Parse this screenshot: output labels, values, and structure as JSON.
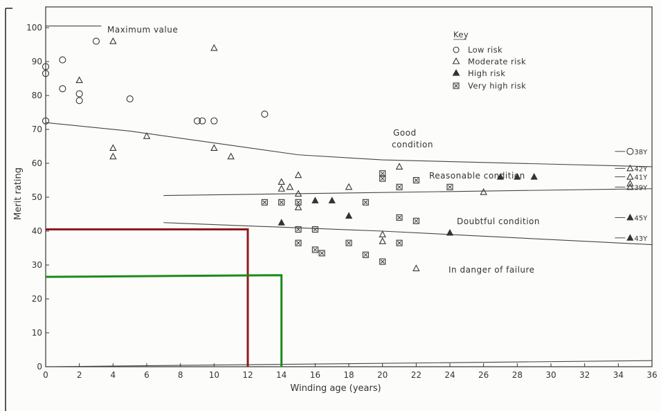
{
  "chart_data": {
    "type": "scatter",
    "xlabel": "Winding age (years)",
    "ylabel": "Merit rating",
    "xlim": [
      0,
      36
    ],
    "ylim": [
      0,
      105
    ],
    "x_ticks": [
      "0",
      "2",
      "4",
      "6",
      "8",
      "10",
      "12",
      "14",
      "16",
      "18",
      "20",
      "22",
      "24",
      "26",
      "28",
      "30",
      "32",
      "34",
      "36"
    ],
    "y_ticks": [
      "0",
      "10",
      "20",
      "30",
      "40",
      "50",
      "60",
      "70",
      "80",
      "90",
      "100"
    ],
    "grid": false,
    "legend": {
      "title": "Key",
      "position": "top-right",
      "entries": [
        {
          "symbol": "circle",
          "label": "Low risk"
        },
        {
          "symbol": "triangle-open",
          "label": "Moderate risk"
        },
        {
          "symbol": "triangle-filled",
          "label": "High risk"
        },
        {
          "symbol": "square-x",
          "label": "Very high risk"
        }
      ]
    },
    "annotations": {
      "max_value": "Maximum value",
      "good": [
        "Good",
        "condition"
      ],
      "reasonable": "Reasonable condition",
      "doubtful": "Doubtful condition",
      "danger": "In danger of failure"
    },
    "boundary_lines": [
      {
        "name": "max",
        "points": [
          [
            0,
            100.5
          ],
          [
            3.3,
            100.5
          ]
        ]
      },
      {
        "name": "good-reasonable",
        "points": [
          [
            0,
            72
          ],
          [
            5,
            69.5
          ],
          [
            10,
            66
          ],
          [
            15,
            62.5
          ],
          [
            20,
            61
          ],
          [
            36,
            59
          ]
        ]
      },
      {
        "name": "reasonable-doubtful",
        "points": [
          [
            7,
            50.5
          ],
          [
            36,
            52.5
          ]
        ]
      },
      {
        "name": "doubtful-danger",
        "points": [
          [
            7,
            42.5
          ],
          [
            20,
            40
          ],
          [
            36,
            36
          ]
        ]
      },
      {
        "name": "bottom",
        "points": [
          [
            0,
            0
          ],
          [
            36,
            1.8
          ]
        ]
      }
    ],
    "series": [
      {
        "name": "Low risk",
        "marker": "circle",
        "points": [
          [
            0,
            88.5
          ],
          [
            0,
            86.5
          ],
          [
            0,
            72.5
          ],
          [
            1,
            90.5
          ],
          [
            1,
            82
          ],
          [
            2,
            80.5
          ],
          [
            2,
            78.5
          ],
          [
            3,
            96
          ],
          [
            5,
            79
          ],
          [
            9,
            72.5
          ],
          [
            9.3,
            72.5
          ],
          [
            10,
            72.5
          ],
          [
            13,
            74.5
          ],
          [
            34.7,
            63.5
          ]
        ]
      },
      {
        "name": "Moderate risk",
        "marker": "triangle-open",
        "points": [
          [
            2,
            84.5
          ],
          [
            4,
            96
          ],
          [
            4,
            64.5
          ],
          [
            4,
            62
          ],
          [
            6,
            68
          ],
          [
            10,
            94
          ],
          [
            10,
            64.5
          ],
          [
            11,
            62
          ],
          [
            14,
            54.5
          ],
          [
            14,
            52.5
          ],
          [
            14.5,
            53
          ],
          [
            15,
            56.5
          ],
          [
            15,
            51
          ],
          [
            15,
            47
          ],
          [
            18,
            53
          ],
          [
            20,
            39
          ],
          [
            20,
            37
          ],
          [
            21,
            59
          ],
          [
            22,
            29
          ],
          [
            26,
            51.5
          ],
          [
            34.7,
            58.5
          ],
          [
            34.7,
            56
          ],
          [
            34.7,
            54
          ],
          [
            34.7,
            53
          ]
        ]
      },
      {
        "name": "High risk",
        "marker": "triangle-filled",
        "points": [
          [
            14,
            42.5
          ],
          [
            16,
            49
          ],
          [
            17,
            49
          ],
          [
            18,
            44.5
          ],
          [
            24,
            39.5
          ],
          [
            27,
            56
          ],
          [
            28,
            56
          ],
          [
            29,
            56
          ],
          [
            34.7,
            44
          ],
          [
            34.7,
            38
          ]
        ]
      },
      {
        "name": "Very high risk",
        "marker": "square-x",
        "points": [
          [
            13,
            48.5
          ],
          [
            14,
            48.5
          ],
          [
            15,
            48.5
          ],
          [
            15,
            40.5
          ],
          [
            15,
            36.5
          ],
          [
            16,
            40.5
          ],
          [
            16,
            34.5
          ],
          [
            16.4,
            33.5
          ],
          [
            18,
            36.5
          ],
          [
            19,
            48.5
          ],
          [
            19,
            33
          ],
          [
            20,
            57
          ],
          [
            20,
            55.5
          ],
          [
            20,
            31
          ],
          [
            21,
            53
          ],
          [
            21,
            44
          ],
          [
            21,
            36.5
          ],
          [
            22,
            55
          ],
          [
            22,
            43
          ],
          [
            24,
            53
          ]
        ]
      }
    ],
    "side_labels": [
      {
        "text": "38Y",
        "x": 34.7,
        "y": 63.5
      },
      {
        "text": "42Y",
        "x": 34.7,
        "y": 58.5
      },
      {
        "text": "41Y",
        "x": 34.7,
        "y": 56
      },
      {
        "text": "39Y",
        "x": 34.7,
        "y": 53
      },
      {
        "text": "45Y",
        "x": 34.7,
        "y": 44
      },
      {
        "text": "43Y",
        "x": 34.7,
        "y": 38
      }
    ],
    "highlight_lines": [
      {
        "color": "#8b1a1a",
        "points": [
          [
            0,
            40.5
          ],
          [
            12,
            40.5
          ],
          [
            12,
            0
          ]
        ]
      },
      {
        "color": "#1a8a1a",
        "points": [
          [
            0,
            26.5
          ],
          [
            14,
            27
          ],
          [
            14,
            0
          ]
        ]
      }
    ]
  }
}
